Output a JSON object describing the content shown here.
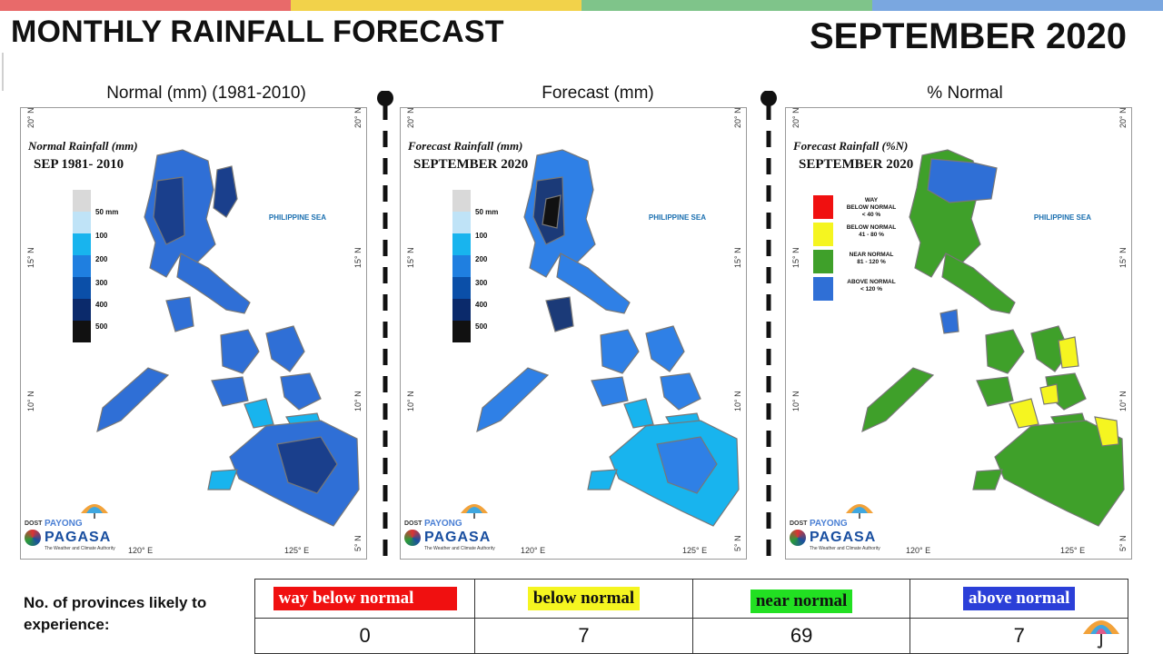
{
  "header": {
    "title": "MONTHLY RAINFALL FORECAST",
    "period": "SEPTEMBER 2020",
    "top_bar_colors": [
      "#e86a6a",
      "#f2d24a",
      "#7fc48a",
      "#7aa7e0"
    ]
  },
  "panels": [
    {
      "label": "Normal (mm) (1981-2010)",
      "map_title_1": "Normal Rainfall (mm)",
      "map_title_2": "SEP 1981- 2010",
      "legend_type": "scale",
      "fill": "#2f6fd6",
      "fill_dark": "#1a3f8c"
    },
    {
      "label": "Forecast (mm)",
      "map_title_1": "Forecast Rainfall (mm)",
      "map_title_2": "SEPTEMBER 2020",
      "legend_type": "scale",
      "fill": "#2f80e6",
      "fill_dark": "#1b3a78"
    },
    {
      "label": "% Normal",
      "map_title_1": "Forecast Rainfall (%N)",
      "map_title_2": "SEPTEMBER 2020",
      "legend_type": "category",
      "fill": "#3fa02a",
      "fill_dark": "#2f6fd6"
    }
  ],
  "map_common": {
    "sea_label": "PHILIPPINE SEA",
    "lat_labels": [
      "20° N",
      "15° N",
      "10° N",
      "5° N"
    ],
    "lon_labels": [
      "120° E",
      "125° E"
    ],
    "scale_legend": {
      "labels": [
        "50 mm",
        "100",
        "200",
        "300",
        "400",
        "500"
      ],
      "colors": [
        "#d9d9d9",
        "#bfe3f7",
        "#18b4ee",
        "#1f7fe0",
        "#0b4fa8",
        "#0b2a6b",
        "#111111"
      ]
    },
    "category_legend": [
      {
        "label_1": "WAY",
        "label_2": "BELOW NORMAL",
        "label_3": "< 40 %",
        "color": "#f01010"
      },
      {
        "label_1": "BELOW NORMAL",
        "label_2": "41 - 80 %",
        "label_3": "",
        "color": "#f5f520"
      },
      {
        "label_1": "NEAR NORMAL",
        "label_2": "81 - 120 %",
        "label_3": "",
        "color": "#3fa02a"
      },
      {
        "label_1": "ABOVE NORMAL",
        "label_2": "< 120 %",
        "label_3": "",
        "color": "#2f6fd6"
      }
    ],
    "logo": {
      "dost": "DOST",
      "payong": "PAYONG",
      "pagasa": "PAGASA",
      "authority": "The Weather and Climate Authority"
    }
  },
  "provinces": {
    "label": "No. of provinces likely to experience:",
    "categories": [
      {
        "name": "way below normal",
        "count": "0",
        "bg": "#f01010",
        "fg": "#ffffff"
      },
      {
        "name": "below normal",
        "count": "7",
        "bg": "#f5f520",
        "fg": "#111111"
      },
      {
        "name": "near normal",
        "count": "69",
        "bg": "#22e022",
        "fg": "#111111"
      },
      {
        "name": "above normal",
        "count": "7",
        "bg": "#2b3fd8",
        "fg": "#ffffff"
      }
    ]
  }
}
